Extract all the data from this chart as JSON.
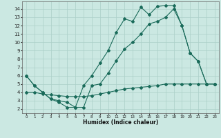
{
  "xlabel": "Humidex (Indice chaleur)",
  "bg_color": "#cbe8e2",
  "grid_color": "#aacfc8",
  "line_color": "#1a6b5a",
  "xlim": [
    -0.5,
    23.5
  ],
  "ylim": [
    1.5,
    14.9
  ],
  "xticks": [
    0,
    1,
    2,
    3,
    4,
    5,
    6,
    7,
    8,
    9,
    10,
    11,
    12,
    13,
    14,
    15,
    16,
    17,
    18,
    19,
    20,
    21,
    22,
    23
  ],
  "yticks": [
    2,
    3,
    4,
    5,
    6,
    7,
    8,
    9,
    10,
    11,
    12,
    13,
    14
  ],
  "line1_x": [
    0,
    1,
    2,
    3,
    4,
    5,
    6,
    7,
    8,
    9,
    10,
    11,
    12,
    13,
    14,
    15,
    16,
    17,
    18,
    19,
    20,
    21,
    22,
    23
  ],
  "line1_y": [
    6.0,
    4.8,
    4.0,
    3.2,
    2.8,
    2.2,
    2.2,
    4.8,
    6.0,
    7.5,
    9.0,
    11.2,
    12.8,
    12.5,
    14.2,
    13.3,
    14.3,
    14.4,
    14.4,
    12.0,
    8.7,
    7.7,
    5.0,
    5.0
  ],
  "line2_x": [
    0,
    1,
    2,
    3,
    4,
    5,
    6,
    7,
    8,
    9,
    10,
    11,
    12,
    13,
    14,
    15,
    16,
    17,
    18,
    19,
    20,
    21,
    22,
    23
  ],
  "line2_y": [
    6.0,
    4.8,
    4.0,
    3.2,
    3.0,
    2.8,
    2.2,
    2.2,
    4.8,
    5.0,
    6.3,
    7.8,
    9.2,
    10.0,
    11.0,
    12.2,
    12.5,
    13.0,
    14.0,
    12.0,
    8.7,
    7.7,
    5.0,
    5.0
  ],
  "line3_x": [
    0,
    1,
    2,
    3,
    4,
    5,
    6,
    7,
    8,
    9,
    10,
    11,
    12,
    13,
    14,
    15,
    16,
    17,
    18,
    19,
    20,
    21,
    22,
    23
  ],
  "line3_y": [
    4.0,
    4.0,
    3.8,
    3.7,
    3.6,
    3.5,
    3.5,
    3.5,
    3.6,
    3.8,
    4.0,
    4.2,
    4.4,
    4.5,
    4.6,
    4.7,
    4.8,
    5.0,
    5.0,
    5.0,
    5.0,
    5.0,
    5.0,
    5.0
  ],
  "xlabel_fontsize": 5.5,
  "tick_fontsize_x": 4.0,
  "tick_fontsize_y": 5.0
}
